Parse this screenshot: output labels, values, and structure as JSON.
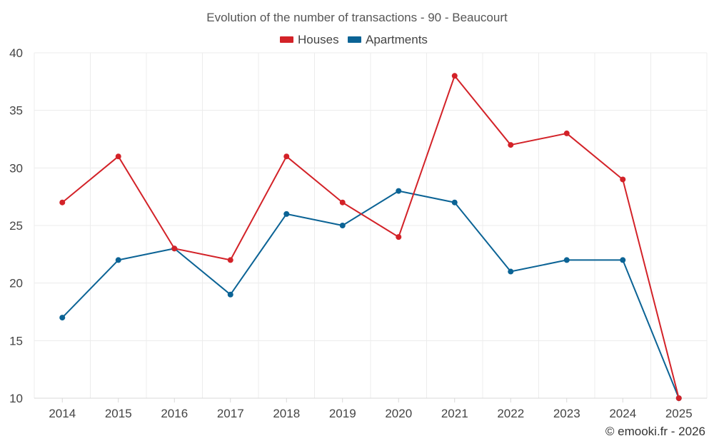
{
  "chart_data": {
    "type": "line",
    "title": "Evolution of the number of transactions - 90 - Beaucourt",
    "categories": [
      "2014",
      "2015",
      "2016",
      "2017",
      "2018",
      "2019",
      "2020",
      "2021",
      "2022",
      "2023",
      "2024",
      "2025"
    ],
    "series": [
      {
        "name": "Houses",
        "color": "#d32228",
        "values": [
          27,
          31,
          23,
          22,
          31,
          27,
          24,
          38,
          32,
          33,
          29,
          10
        ]
      },
      {
        "name": "Apartments",
        "color": "#0b6395",
        "values": [
          17,
          22,
          23,
          19,
          26,
          25,
          28,
          27,
          21,
          22,
          22,
          10
        ]
      }
    ],
    "ylim": [
      10,
      40
    ],
    "yticks": [
      10,
      15,
      20,
      25,
      30,
      35,
      40
    ],
    "grid": true,
    "legend": "top-center",
    "xlabel": "",
    "ylabel": ""
  },
  "credit": "© emooki.fr - 2026"
}
